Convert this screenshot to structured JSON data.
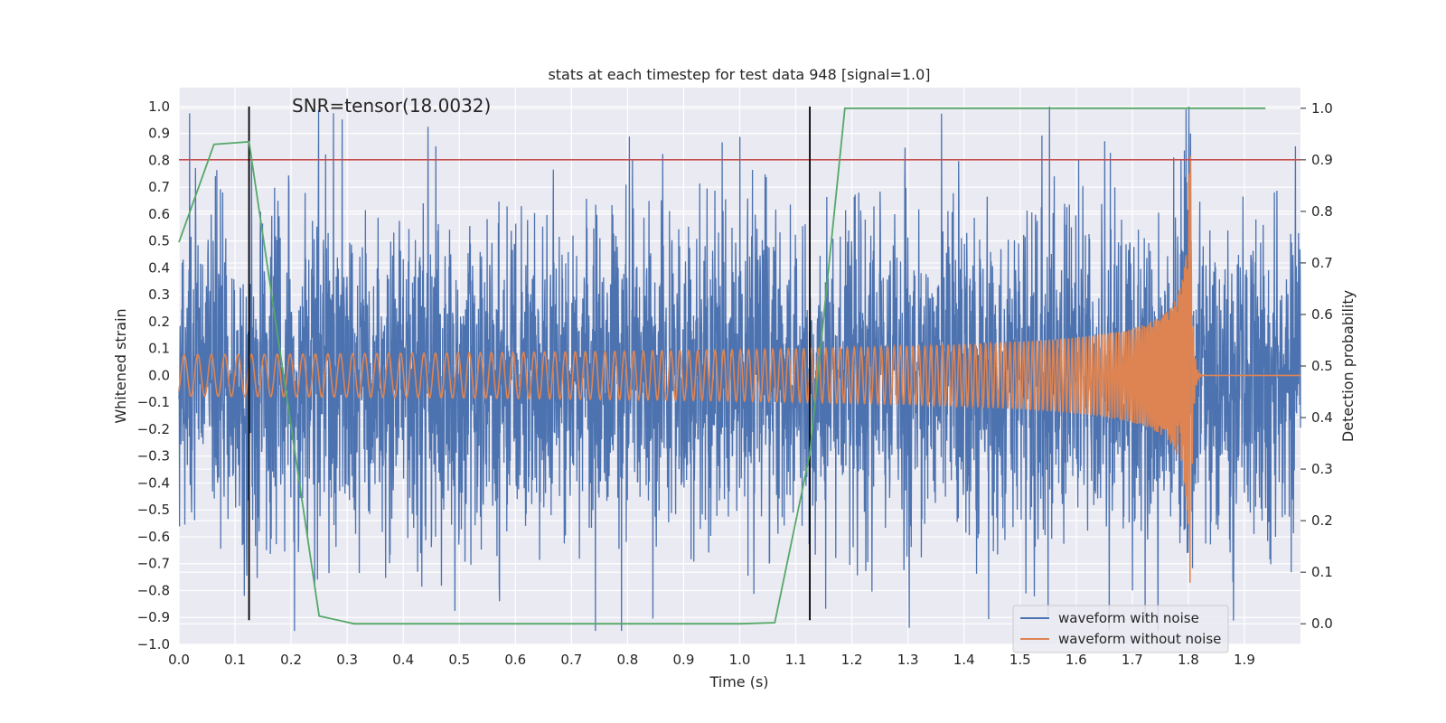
{
  "chart_data": {
    "type": "line",
    "title": "stats at each timestep for test data 948 [signal=1.0]",
    "xlabel": "Time (s)",
    "ylabel_left": "Whitened strain",
    "ylabel_right": "Detection probability",
    "annotation": "SNR=tensor(18.0032)",
    "xlim": [
      0.0,
      2.0
    ],
    "ylim_left": [
      -1.0,
      1.07
    ],
    "ylim_right": [
      -0.04,
      1.04
    ],
    "x_ticks": [
      0.0,
      0.1,
      0.2,
      0.3,
      0.4,
      0.5,
      0.6,
      0.7,
      0.8,
      0.9,
      1.0,
      1.1,
      1.2,
      1.3,
      1.4,
      1.5,
      1.6,
      1.7,
      1.8,
      1.9
    ],
    "y_left_ticks": [
      -1.0,
      -0.9,
      -0.8,
      -0.7,
      -0.6,
      -0.5,
      -0.4,
      -0.3,
      -0.2,
      -0.1,
      0.0,
      0.1,
      0.2,
      0.3,
      0.4,
      0.5,
      0.6,
      0.7,
      0.8,
      0.9,
      1.0
    ],
    "y_right_ticks": [
      0.0,
      0.1,
      0.2,
      0.3,
      0.4,
      0.5,
      0.6,
      0.7,
      0.8,
      0.9,
      1.0
    ],
    "grid": true,
    "legend_position": "lower-right",
    "series": [
      {
        "name": "waveform with noise",
        "color": "#4c72b0",
        "axis": "left",
        "style": "noisy strain, approx. range -0.9 to 1.0, sampled over 0.0-2.0 s",
        "sample_rate": 2048,
        "typical_amplitude": 0.3
      },
      {
        "name": "waveform without noise",
        "color": "#dd8452",
        "axis": "left",
        "style": "chirp; amplitude grows from ~0.08 to ~0.8 peak at merger 1.805 s, then ringdown to 0.0",
        "merger_time": 1.805,
        "start_amplitude": 0.075,
        "peak_amplitude": 0.82
      },
      {
        "name": "detection probability",
        "color": "#55a868",
        "axis": "right",
        "x": [
          0.0,
          0.0625,
          0.125,
          0.25,
          0.3125,
          1.0,
          1.0625,
          1.125,
          1.1875,
          1.25,
          1.9375
        ],
        "y": [
          0.74,
          0.93,
          0.935,
          0.015,
          0.0,
          0.0,
          0.002,
          0.33,
          1.0,
          1.0,
          1.0
        ]
      }
    ],
    "threshold_line": {
      "axis": "right",
      "value": 0.9,
      "color": "#c44e52"
    },
    "vertical_markers": [
      0.125,
      1.125
    ],
    "vertical_marker_range_left": [
      -0.91,
      1.0
    ]
  }
}
